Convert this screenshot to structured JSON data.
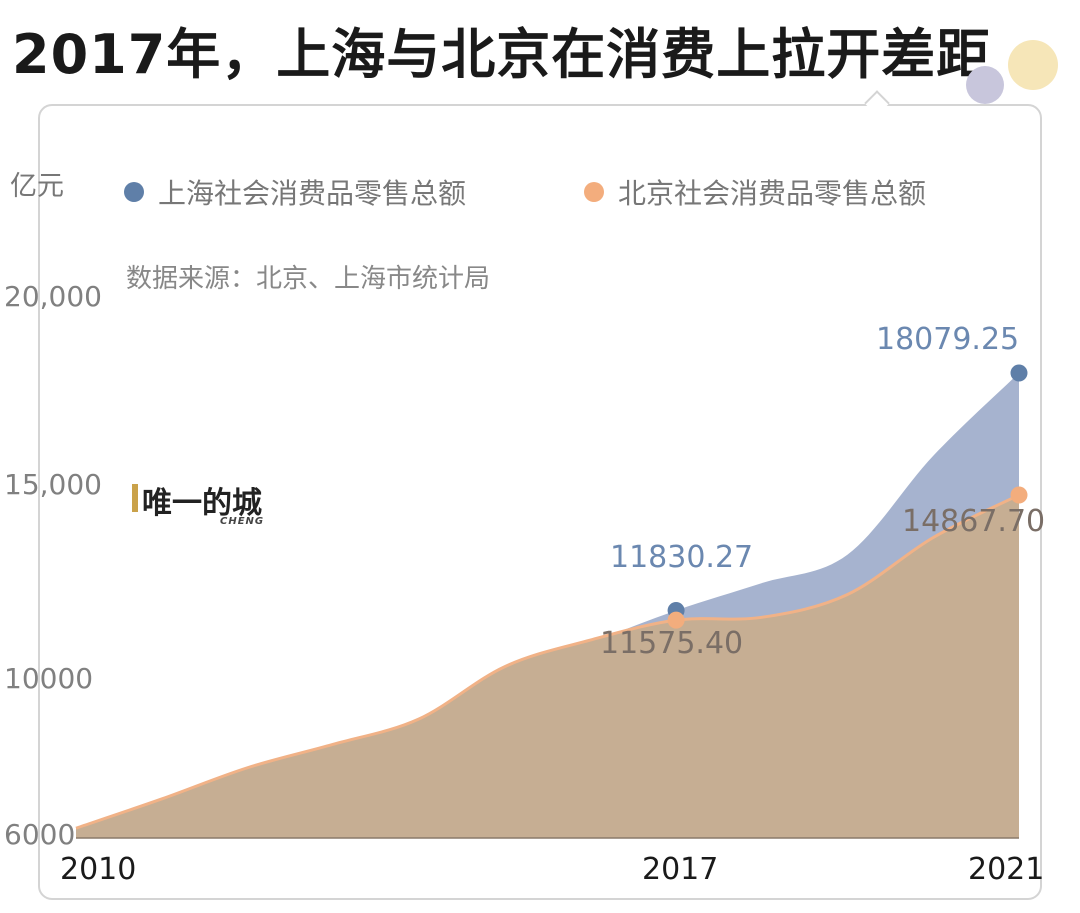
{
  "title": "2017年，上海与北京在消费上拉开差距",
  "logo": {
    "name": "唯一的城",
    "sub": "CHENG"
  },
  "source": "数据来源：北京、上海市统计局",
  "colors": {
    "shanghai": "#5f7fa8",
    "beijing": "#f3ad7d",
    "shanghai_fill": "#a6b3cf",
    "beijing_fill": "#c6ae93"
  },
  "chart_data": {
    "type": "area",
    "unit": "亿元",
    "y_tick_labels": [
      "20,000",
      "15,000",
      "10000",
      "6000"
    ],
    "ylim": [
      6000,
      20000
    ],
    "x_tick_labels": [
      "2010",
      "2017",
      "2021"
    ],
    "x": [
      2010,
      2011,
      2012,
      2013,
      2014,
      2015,
      2016,
      2017,
      2018,
      2019,
      2020,
      2021
    ],
    "series": [
      {
        "name": "上海社会消费品零售总额",
        "values": [
          6100,
          6800,
          7450,
          8000,
          8600,
          9850,
          10950,
          11830.27,
          12550,
          13300,
          15900,
          18079.25
        ]
      },
      {
        "name": "北京社会消费品零售总额",
        "values": [
          6200,
          6950,
          7750,
          8350,
          9000,
          10350,
          11050,
          11575.4,
          11650,
          12250,
          13750,
          14867.7
        ]
      }
    ],
    "annotations": [
      {
        "series": 0,
        "x": 2017,
        "label": "11830.27"
      },
      {
        "series": 1,
        "x": 2017,
        "label": "11575.40"
      },
      {
        "series": 0,
        "x": 2021,
        "label": "18079.25"
      },
      {
        "series": 1,
        "x": 2021,
        "label": "14867.70"
      }
    ]
  }
}
